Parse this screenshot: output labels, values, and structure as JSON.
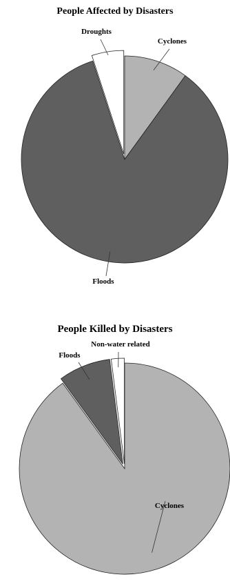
{
  "chart_data": [
    {
      "type": "pie",
      "title": "People Affected by Disasters",
      "slices": [
        {
          "label": "Cyclones",
          "value": 10,
          "color": "#b3b3b3",
          "exploded": false
        },
        {
          "label": "Floods",
          "value": 85,
          "color": "#5f5f5f",
          "exploded": false
        },
        {
          "label": "Droughts",
          "value": 5,
          "color": "#ffffff",
          "exploded": true
        }
      ],
      "start_angle_deg": 0,
      "direction": "clockwise"
    },
    {
      "type": "pie",
      "title": "People Killed by Disasters",
      "slices": [
        {
          "label": "Cyclones",
          "value": 90,
          "color": "#b3b3b3",
          "exploded": false
        },
        {
          "label": "Floods",
          "value": 8,
          "color": "#5f5f5f",
          "exploded": true
        },
        {
          "label": "Non-water related",
          "value": 2,
          "color": "#ffffff",
          "exploded": true
        }
      ],
      "start_angle_deg": 0,
      "direction": "clockwise"
    }
  ]
}
